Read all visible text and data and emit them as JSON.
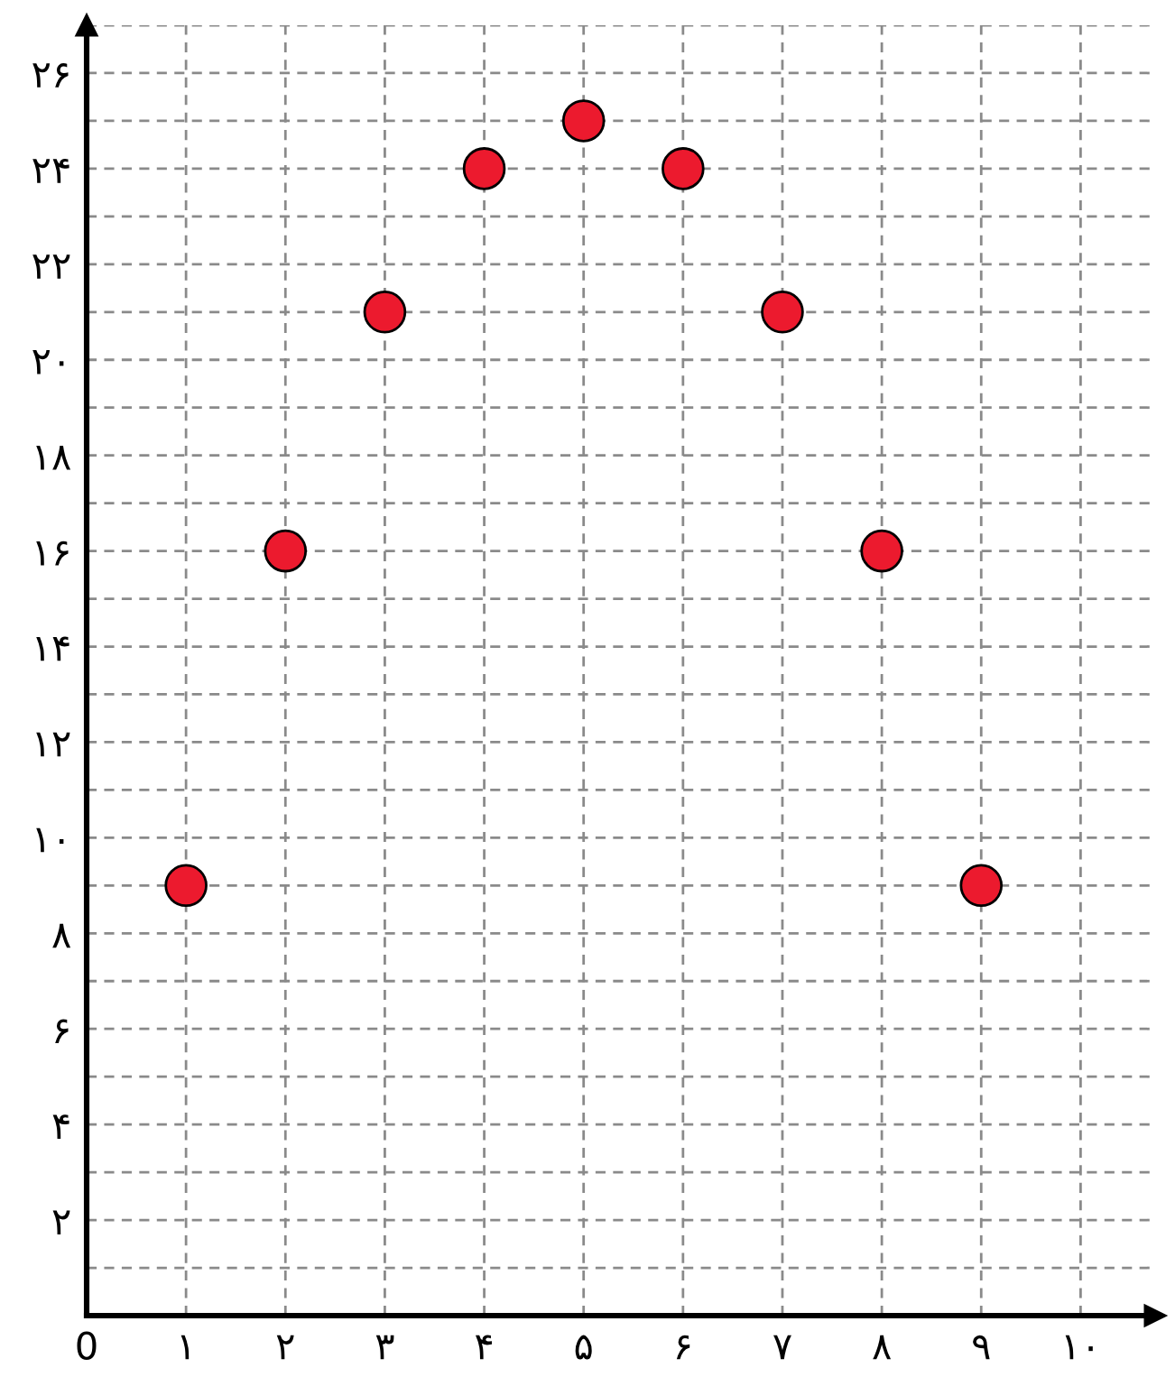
{
  "chart_data": {
    "type": "scatter",
    "x": [
      1,
      2,
      3,
      4,
      5,
      6,
      7,
      8,
      9
    ],
    "series": [
      {
        "color": "#ec1a2e",
        "values": [
          9,
          16,
          21,
          24,
          25,
          24,
          21,
          16,
          9
        ]
      }
    ],
    "marker": "circle",
    "grid": true,
    "xlim": [
      0,
      10.75
    ],
    "ylim": [
      0,
      27
    ],
    "xticks": [
      {
        "value": 0,
        "label": "0"
      },
      {
        "value": 1,
        "label": "۱"
      },
      {
        "value": 2,
        "label": "۲"
      },
      {
        "value": 3,
        "label": "۳"
      },
      {
        "value": 4,
        "label": "۴"
      },
      {
        "value": 5,
        "label": "۵"
      },
      {
        "value": 6,
        "label": "۶"
      },
      {
        "value": 7,
        "label": "۷"
      },
      {
        "value": 8,
        "label": "۸"
      },
      {
        "value": 9,
        "label": "۹"
      },
      {
        "value": 10,
        "label": "۱۰"
      }
    ],
    "yticks": [
      {
        "value": 1,
        "label": null
      },
      {
        "value": 2,
        "label": "۲"
      },
      {
        "value": 3,
        "label": null
      },
      {
        "value": 4,
        "label": "۴"
      },
      {
        "value": 5,
        "label": null
      },
      {
        "value": 6,
        "label": "۶"
      },
      {
        "value": 7,
        "label": null
      },
      {
        "value": 8,
        "label": "۸"
      },
      {
        "value": 9,
        "label": null
      },
      {
        "value": 10,
        "label": "۱۰"
      },
      {
        "value": 11,
        "label": null
      },
      {
        "value": 12,
        "label": "۱۲"
      },
      {
        "value": 13,
        "label": null
      },
      {
        "value": 14,
        "label": "۱۴"
      },
      {
        "value": 15,
        "label": null
      },
      {
        "value": 16,
        "label": "۱۶"
      },
      {
        "value": 17,
        "label": null
      },
      {
        "value": 18,
        "label": "۱۸"
      },
      {
        "value": 19,
        "label": null
      },
      {
        "value": 20,
        "label": "۲۰"
      },
      {
        "value": 21,
        "label": null
      },
      {
        "value": 22,
        "label": "۲۲"
      },
      {
        "value": 23,
        "label": null
      },
      {
        "value": 24,
        "label": "۲۴"
      },
      {
        "value": 25,
        "label": null
      },
      {
        "value": 26,
        "label": "۲۶"
      },
      {
        "value": 27,
        "label": null
      }
    ]
  }
}
